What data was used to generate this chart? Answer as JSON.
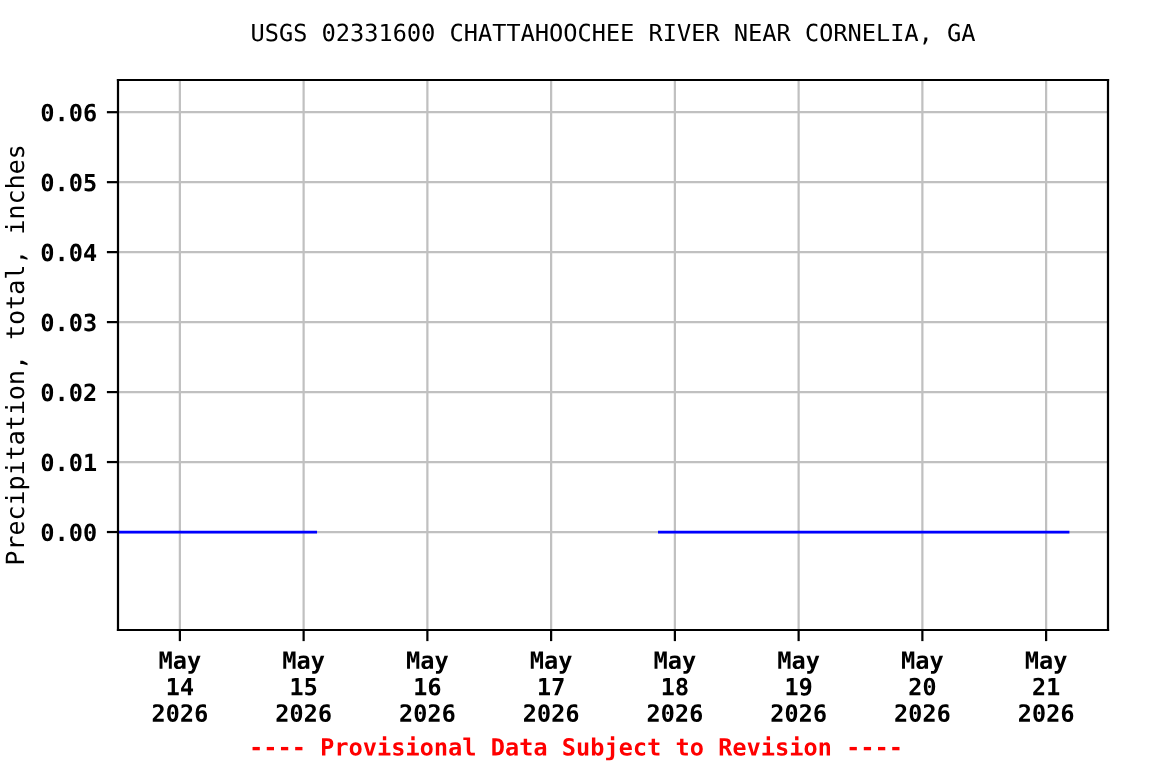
{
  "chart_data": {
    "type": "line",
    "title": "USGS 02331600 CHATTAHOOCHEE RIVER NEAR CORNELIA, GA",
    "ylabel": "Precipitation, total, inches",
    "x": [
      "2026-05-13T12:00",
      "2026-05-15T02:20",
      "2026-05-16T12:00",
      "2026-05-17T21:00",
      "2026-05-21T04:15"
    ],
    "series": [
      {
        "color": "#0000ff",
        "values": [
          0,
          0,
          null,
          0,
          0
        ]
      }
    ],
    "xlim": [
      "2026-05-13T12:00",
      "2026-05-21T12:00"
    ],
    "xticks": [
      {
        "value": "2026-05-14",
        "label": "May\n14\n2026"
      },
      {
        "value": "2026-05-15",
        "label": "May\n15\n2026"
      },
      {
        "value": "2026-05-16",
        "label": "May\n16\n2026"
      },
      {
        "value": "2026-05-17",
        "label": "May\n17\n2026"
      },
      {
        "value": "2026-05-18",
        "label": "May\n18\n2026"
      },
      {
        "value": "2026-05-19",
        "label": "May\n19\n2026"
      },
      {
        "value": "2026-05-20",
        "label": "May\n20\n2026"
      },
      {
        "value": "2026-05-21",
        "label": "May\n21\n2026"
      }
    ],
    "ylim": [
      -0.014,
      0.0646
    ],
    "yticks": [
      {
        "value": 0,
        "label": "0.00"
      },
      {
        "value": 0.01,
        "label": "0.01"
      },
      {
        "value": 0.02,
        "label": "0.02"
      },
      {
        "value": 0.03,
        "label": "0.03"
      },
      {
        "value": 0.04,
        "label": "0.04"
      },
      {
        "value": 0.05,
        "label": "0.05"
      },
      {
        "value": 0.06,
        "label": "0.06"
      }
    ],
    "grid": true,
    "line_style": "solid",
    "marker": "none",
    "annotations": [
      "---- Provisional Data Subject to Revision ----"
    ]
  }
}
